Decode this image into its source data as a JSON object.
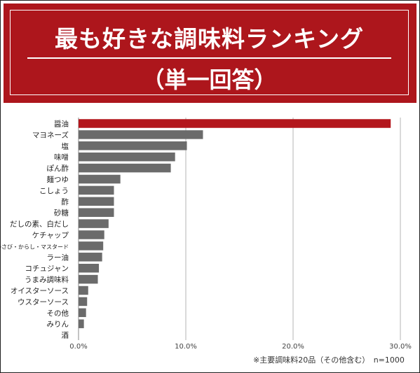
{
  "header": {
    "title": "最も好きな調味料ランキング",
    "subtitle": "（単一回答）"
  },
  "footnote": "※主要調味料20品（その他含む）　n=1000",
  "colors": {
    "header_bg": "#ad161c",
    "highlight_bar": "#b3161c",
    "bar": "#6b6b6b",
    "grid": "#b5b5b5"
  },
  "chart_data": {
    "type": "bar",
    "orientation": "horizontal",
    "title": "最も好きな調味料ランキング",
    "subtitle": "（単一回答）",
    "xlim": [
      0,
      30
    ],
    "x_ticks": [
      "0.0%",
      "10.0%",
      "20.0%",
      "30.0%"
    ],
    "grid": true,
    "categories": [
      "醤油",
      "マヨネーズ",
      "塩",
      "味噌",
      "ぽん酢",
      "麺つゆ",
      "こしょう",
      "酢",
      "砂糖",
      "だしの素、白だし",
      "ケチャップ",
      "わさび・からし・マスタード",
      "ラー油",
      "コチュジャン",
      "うまみ調味料",
      "オイスターソース",
      "ウスターソース",
      "その他",
      "みりん",
      "酒"
    ],
    "values": [
      29.1,
      11.6,
      10.1,
      9.0,
      8.6,
      3.9,
      3.3,
      3.3,
      3.3,
      2.8,
      2.4,
      2.3,
      2.2,
      1.9,
      1.8,
      0.9,
      0.8,
      0.7,
      0.5,
      0.0
    ],
    "highlight_index": 0
  }
}
